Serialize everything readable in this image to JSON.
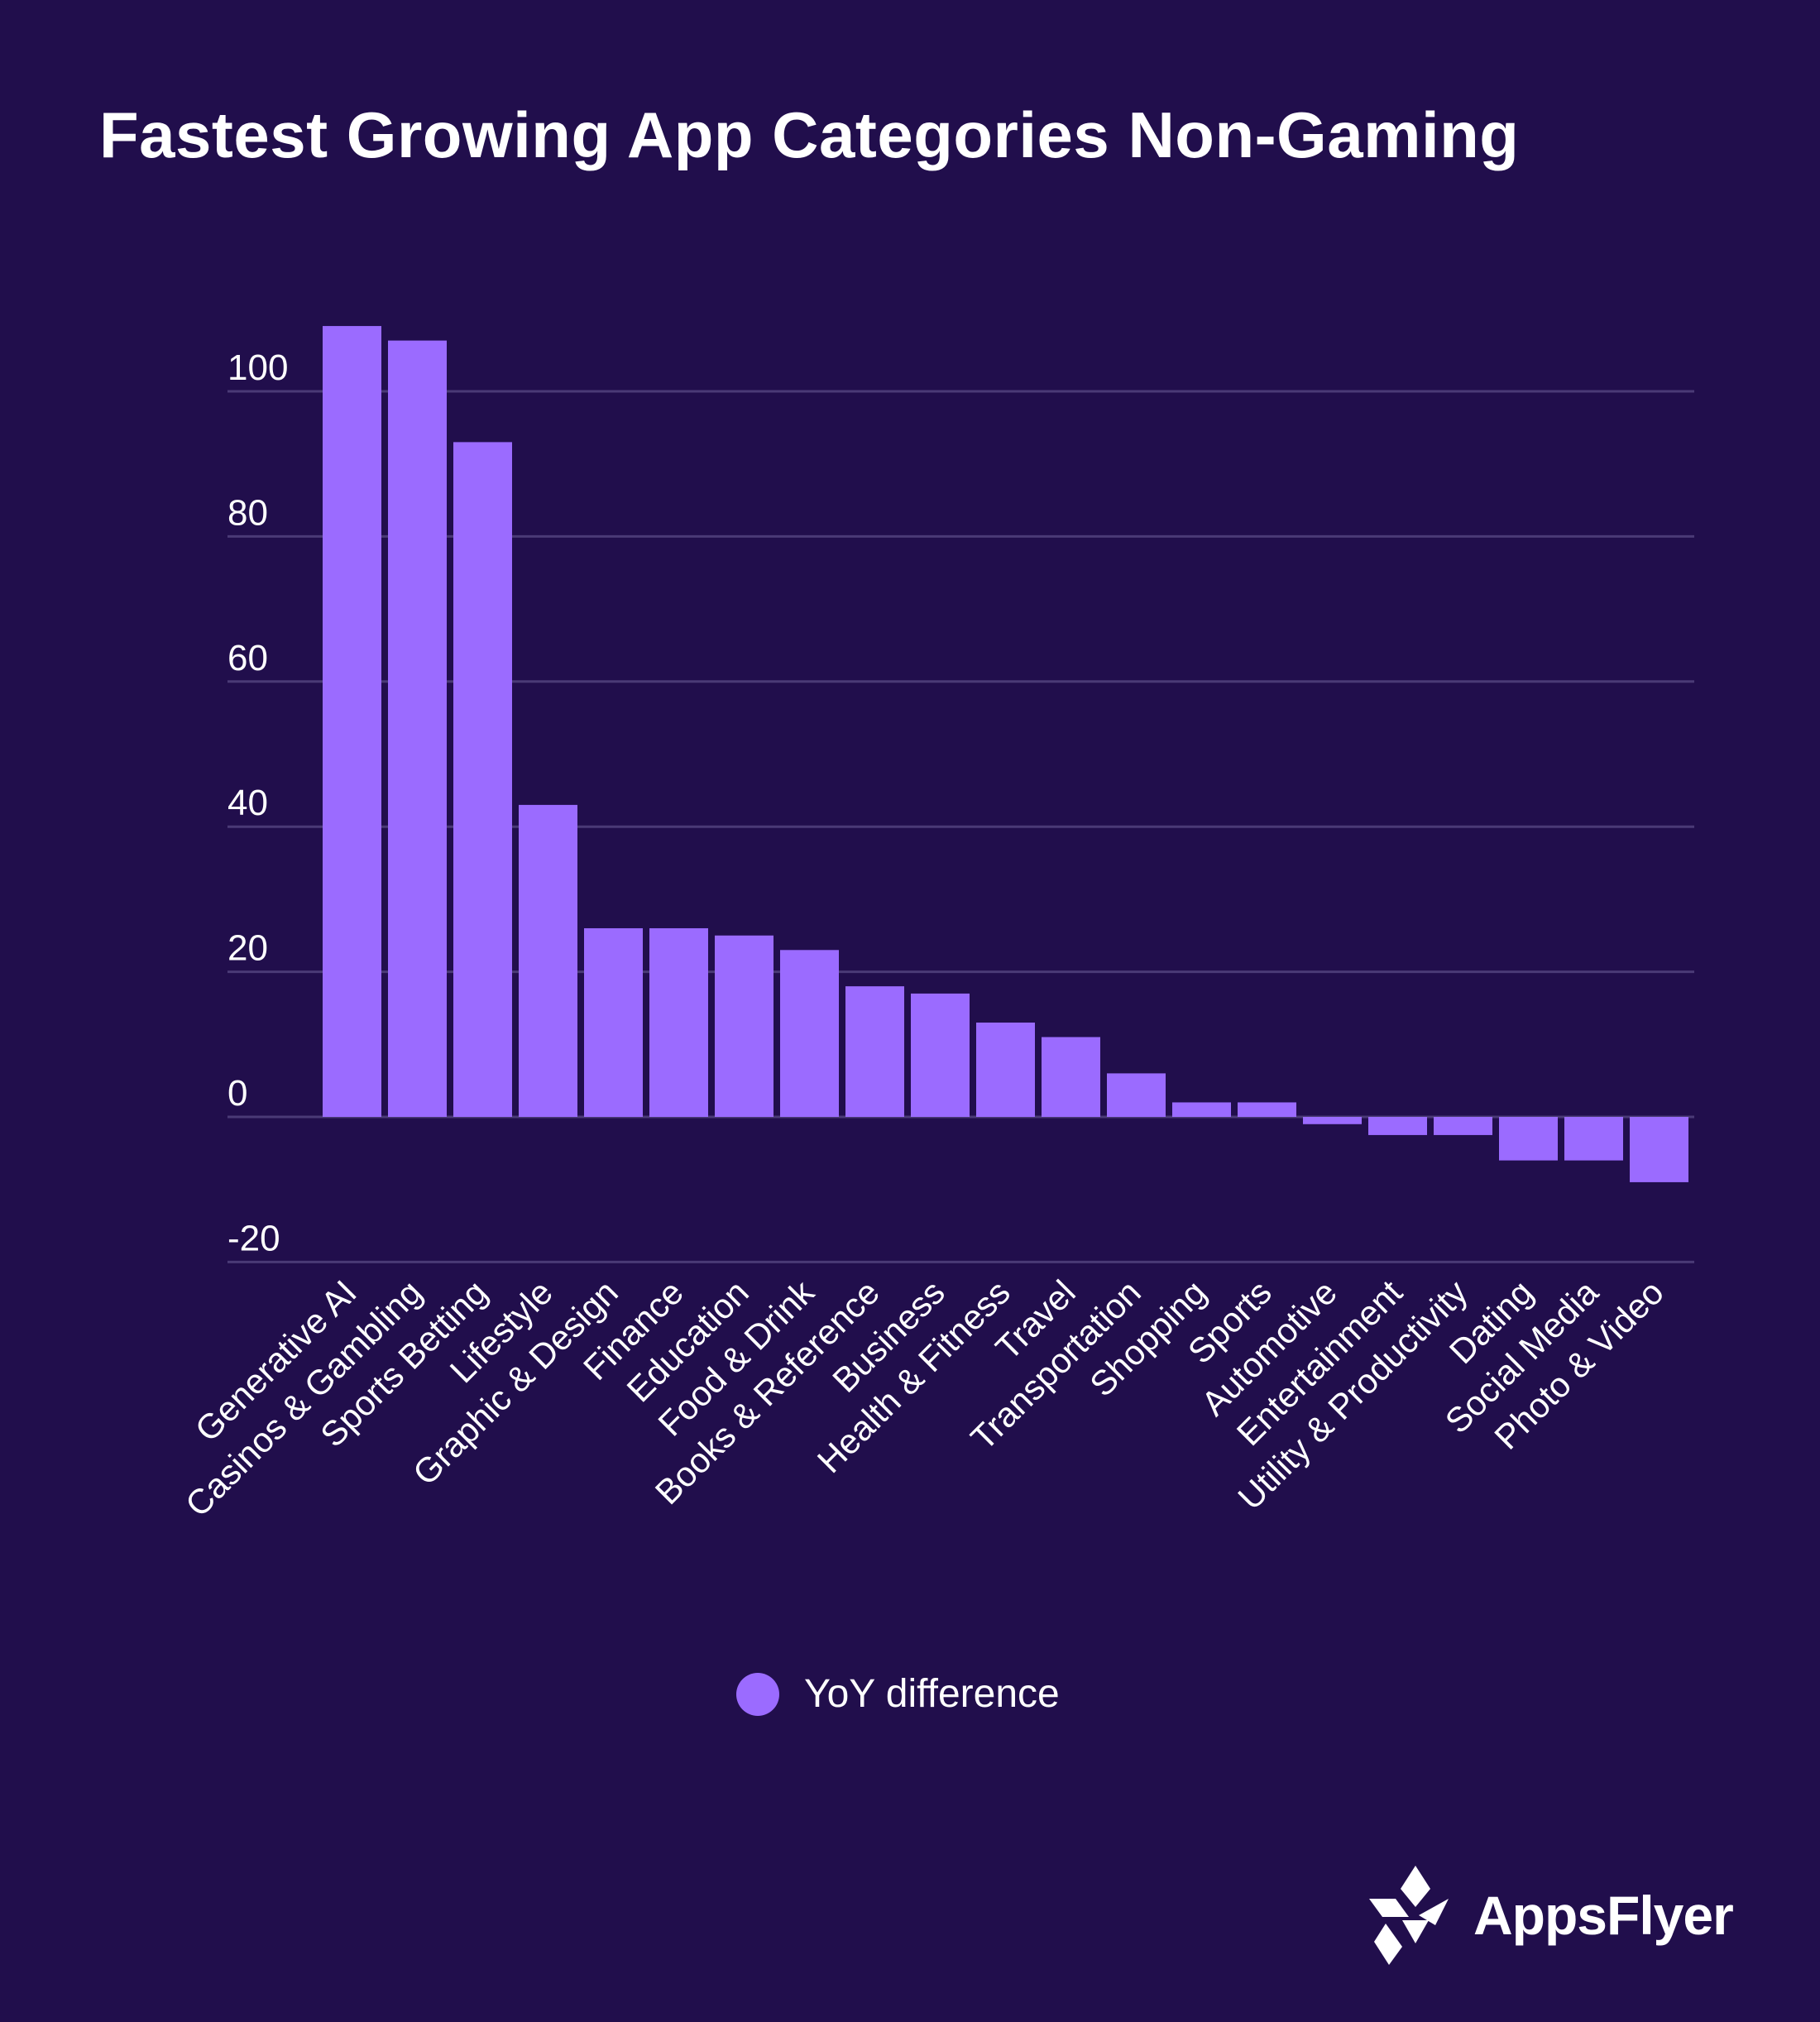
{
  "title": "Fastest Growing App Categories Non-Gaming",
  "colors": {
    "background": "#210e4c",
    "bar": "#9b6bff",
    "grid": "#4a3a76",
    "text": "#ffffff"
  },
  "legend": {
    "label": "YoY difference",
    "placement": "bottom-center"
  },
  "brand": {
    "name": "AppsFlyer",
    "icon": "appsflyer-logo-icon"
  },
  "chart_data": {
    "type": "bar",
    "categories": [
      "Generative AI",
      "Casinos & Gambling",
      "Sports Betting",
      "Lifestyle",
      "Graphic & Design",
      "Finance",
      "Education",
      "Food & Drink",
      "Books & Reference",
      "Business",
      "Health & Fitness",
      "Travel",
      "Transportation",
      "Shopping",
      "Sports",
      "Automotive",
      "Entertainment",
      "Utility & Productivity",
      "Dating",
      "Social Media",
      "Photo & Video"
    ],
    "series": [
      {
        "name": "YoY difference",
        "values": [
          109,
          107,
          93,
          43,
          26,
          26,
          25,
          23,
          18,
          17,
          13,
          11,
          6,
          2,
          2,
          -1,
          -2.5,
          -2.5,
          -6,
          -6,
          -9
        ]
      }
    ],
    "title": "Fastest Growing App Categories Non-Gaming",
    "xlabel": "",
    "ylabel": "",
    "ylim": [
      -20,
      100
    ],
    "yticks": [
      -20,
      0,
      20,
      40,
      60,
      80,
      100
    ],
    "grid": true,
    "legend_position": "bottom-center"
  }
}
